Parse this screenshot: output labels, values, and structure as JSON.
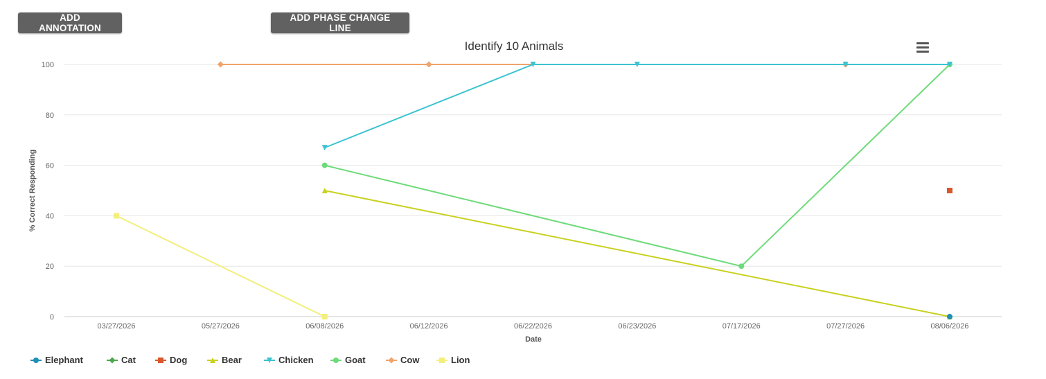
{
  "toolbar": {
    "add_annotation_label": "ADD ANNOTATION",
    "add_phase_change_label": "ADD PHASE CHANGE LINE"
  },
  "chart_data": {
    "type": "line",
    "title": "Identify 10 Animals",
    "xlabel": "Date",
    "ylabel": "% Correct Responding",
    "categories": [
      "03/27/2026",
      "05/27/2026",
      "06/08/2026",
      "06/12/2026",
      "06/22/2026",
      "06/23/2026",
      "07/17/2026",
      "07/27/2026",
      "08/06/2026"
    ],
    "ylim": [
      0,
      100
    ],
    "yticks": [
      0,
      20,
      40,
      60,
      80,
      100
    ],
    "grid": true,
    "legend_position": "bottom-left",
    "series": [
      {
        "name": "Elephant",
        "color": "#1f8fb5",
        "marker": "circle",
        "values": [
          null,
          null,
          null,
          null,
          null,
          null,
          null,
          null,
          0
        ]
      },
      {
        "name": "Cat",
        "color": "#4ca64c",
        "marker": "diamond",
        "values": [
          null,
          null,
          null,
          null,
          null,
          null,
          null,
          null,
          0
        ]
      },
      {
        "name": "Dog",
        "color": "#d9582b",
        "marker": "square",
        "values": [
          null,
          null,
          null,
          null,
          null,
          null,
          null,
          null,
          50
        ]
      },
      {
        "name": "Bear",
        "color": "#c9d11f",
        "marker": "triangle",
        "values": [
          null,
          null,
          50,
          null,
          null,
          null,
          null,
          null,
          0
        ]
      },
      {
        "name": "Chicken",
        "color": "#3cc3d1",
        "marker": "triangle-down",
        "values": [
          null,
          null,
          67,
          null,
          100,
          100,
          null,
          100,
          100
        ]
      },
      {
        "name": "Goat",
        "color": "#6edb7a",
        "marker": "circle",
        "values": [
          null,
          null,
          60,
          null,
          null,
          null,
          20,
          null,
          100
        ]
      },
      {
        "name": "Cow",
        "color": "#f0a36a",
        "marker": "diamond",
        "values": [
          null,
          100,
          null,
          100,
          null,
          null,
          null,
          100,
          null
        ]
      },
      {
        "name": "Lion",
        "color": "#f2ef7c",
        "marker": "square",
        "values": [
          40,
          null,
          0,
          null,
          null,
          null,
          null,
          null,
          null
        ]
      }
    ]
  }
}
